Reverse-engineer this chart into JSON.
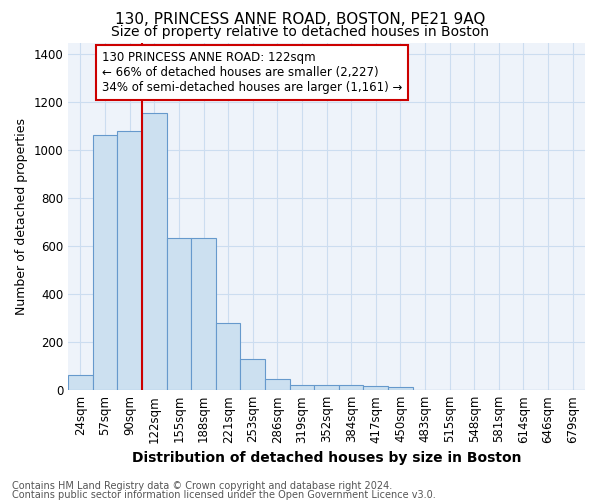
{
  "title": "130, PRINCESS ANNE ROAD, BOSTON, PE21 9AQ",
  "subtitle": "Size of property relative to detached houses in Boston",
  "xlabel": "Distribution of detached houses by size in Boston",
  "ylabel": "Number of detached properties",
  "footnote1": "Contains HM Land Registry data © Crown copyright and database right 2024.",
  "footnote2": "Contains public sector information licensed under the Open Government Licence v3.0.",
  "bar_labels": [
    "24sqm",
    "57sqm",
    "90sqm",
    "122sqm",
    "155sqm",
    "188sqm",
    "221sqm",
    "253sqm",
    "286sqm",
    "319sqm",
    "352sqm",
    "384sqm",
    "417sqm",
    "450sqm",
    "483sqm",
    "515sqm",
    "548sqm",
    "581sqm",
    "614sqm",
    "646sqm",
    "679sqm"
  ],
  "bar_values": [
    65,
    1065,
    1080,
    1155,
    635,
    635,
    280,
    130,
    48,
    22,
    22,
    22,
    18,
    12,
    0,
    0,
    0,
    0,
    0,
    0,
    0
  ],
  "bar_color": "#cce0f0",
  "bar_edge_color": "#6699cc",
  "red_line_x": 2.5,
  "annotation_text": "130 PRINCESS ANNE ROAD: 122sqm\n← 66% of detached houses are smaller (2,227)\n34% of semi-detached houses are larger (1,161) →",
  "annotation_box_color": "white",
  "annotation_box_edge_color": "#cc0000",
  "red_line_color": "#cc0000",
  "ylim": [
    0,
    1450
  ],
  "yticks": [
    0,
    200,
    400,
    600,
    800,
    1000,
    1200,
    1400
  ],
  "grid_color": "#ccddf0",
  "bg_color": "#eef3fa",
  "title_fontsize": 11,
  "subtitle_fontsize": 10,
  "ylabel_fontsize": 9,
  "xlabel_fontsize": 10,
  "tick_fontsize": 8.5,
  "footnote_fontsize": 7,
  "annot_fontsize": 8.5
}
